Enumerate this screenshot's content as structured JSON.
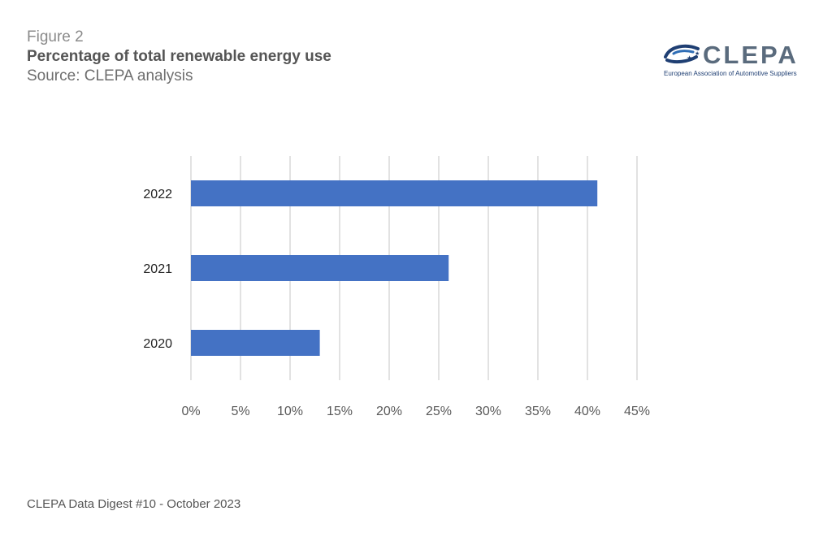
{
  "header": {
    "figure_label": "Figure 2",
    "title": "Percentage of total renewable energy use",
    "source": "Source: CLEPA analysis"
  },
  "logo": {
    "wordmark": "CLEPA",
    "tagline": "European Association of Automotive Suppliers",
    "icon": "stars-swoosh-icon"
  },
  "chart_data": {
    "type": "bar",
    "orientation": "horizontal",
    "categories": [
      "2022",
      "2021",
      "2020"
    ],
    "values": [
      41,
      26,
      13
    ],
    "unit": "%",
    "xlim": [
      0,
      45
    ],
    "x_ticks": [
      "0%",
      "5%",
      "10%",
      "15%",
      "20%",
      "25%",
      "30%",
      "35%",
      "40%",
      "45%"
    ],
    "grid": "vertical",
    "bar_color": "#4472C4",
    "grid_color": "#d9d9d9"
  },
  "footer": {
    "text": "CLEPA Data Digest #10 - October 2023"
  }
}
